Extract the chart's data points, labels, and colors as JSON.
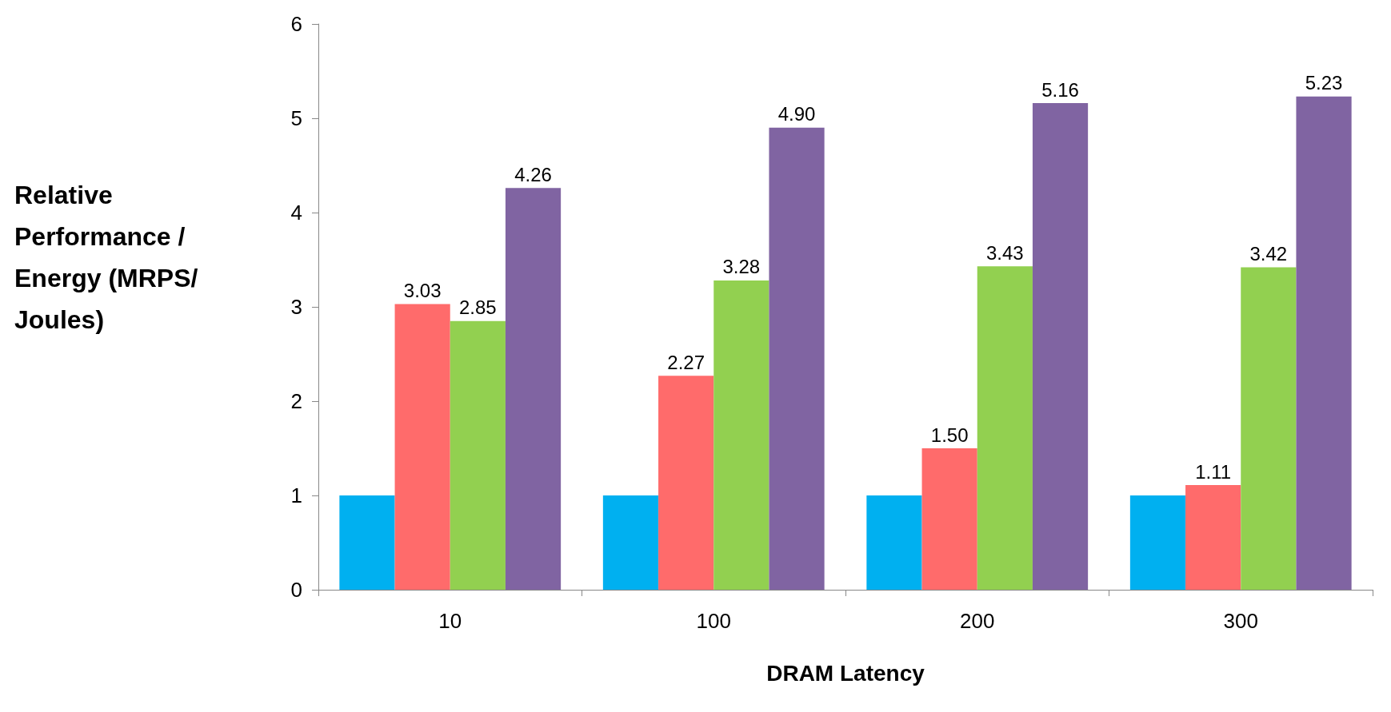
{
  "chart_data": {
    "type": "bar",
    "xlabel": "DRAM Latency",
    "ylabel": "Relative Performance / Energy (MRPS/Joules)",
    "categories": [
      "10",
      "100",
      "200",
      "300"
    ],
    "series": [
      {
        "color": "#00b0f0",
        "values": [
          1,
          1,
          1,
          1
        ],
        "value_labels": [
          null,
          null,
          null,
          null
        ]
      },
      {
        "color": "#ff6b6b",
        "values": [
          3.03,
          2.27,
          1.5,
          1.11
        ],
        "value_labels": [
          "3.03",
          "2.27",
          "1.50",
          "1.11"
        ]
      },
      {
        "color": "#92d050",
        "values": [
          2.85,
          3.28,
          3.43,
          3.42
        ],
        "value_labels": [
          "2.85",
          "3.28",
          "3.43",
          "3.42"
        ]
      },
      {
        "color": "#8064a2",
        "values": [
          4.26,
          4.9,
          5.16,
          5.23
        ],
        "value_labels": [
          "4.26",
          "4.90",
          "5.16",
          "5.23"
        ]
      }
    ],
    "ylim": [
      0,
      6
    ],
    "yticks": [
      0,
      1,
      2,
      3,
      4,
      5,
      6
    ],
    "grid": false
  }
}
